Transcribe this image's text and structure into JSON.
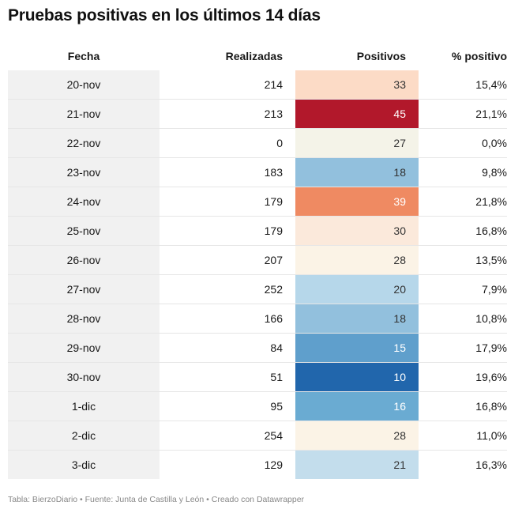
{
  "title": "Pruebas positivas en los últimos 14 días",
  "footer": "Tabla: BierzoDiario • Fuente: Junta de Castilla y León • Creado con Datawrapper",
  "chart_data": {
    "type": "table",
    "columns": [
      "Fecha",
      "Realizadas",
      "Positivos",
      "% positivo"
    ],
    "rows": [
      {
        "fecha": "20-nov",
        "realizadas": "214",
        "positivos": "33",
        "pct": "15,4%",
        "color": "#fcdbc6",
        "text": "#333333"
      },
      {
        "fecha": "21-nov",
        "realizadas": "213",
        "positivos": "45",
        "pct": "21,1%",
        "color": "#b2182b",
        "text": "#ffffff"
      },
      {
        "fecha": "22-nov",
        "realizadas": "0",
        "positivos": "27",
        "pct": "0,0%",
        "color": "#f4f3e8",
        "text": "#333333"
      },
      {
        "fecha": "23-nov",
        "realizadas": "183",
        "positivos": "18",
        "pct": "9,8%",
        "color": "#92c0dd",
        "text": "#333333"
      },
      {
        "fecha": "24-nov",
        "realizadas": "179",
        "positivos": "39",
        "pct": "21,8%",
        "color": "#ef8a62",
        "text": "#ffffff"
      },
      {
        "fecha": "25-nov",
        "realizadas": "179",
        "positivos": "30",
        "pct": "16,8%",
        "color": "#fbe9db",
        "text": "#333333"
      },
      {
        "fecha": "26-nov",
        "realizadas": "207",
        "positivos": "28",
        "pct": "13,5%",
        "color": "#fbf3e6",
        "text": "#333333"
      },
      {
        "fecha": "27-nov",
        "realizadas": "252",
        "positivos": "20",
        "pct": "7,9%",
        "color": "#b6d7ea",
        "text": "#333333"
      },
      {
        "fecha": "28-nov",
        "realizadas": "166",
        "positivos": "18",
        "pct": "10,8%",
        "color": "#92c0dd",
        "text": "#333333"
      },
      {
        "fecha": "29-nov",
        "realizadas": "84",
        "positivos": "15",
        "pct": "17,9%",
        "color": "#5f9fcc",
        "text": "#ffffff"
      },
      {
        "fecha": "30-nov",
        "realizadas": "51",
        "positivos": "10",
        "pct": "19,6%",
        "color": "#2166ac",
        "text": "#ffffff"
      },
      {
        "fecha": "1-dic",
        "realizadas": "95",
        "positivos": "16",
        "pct": "16,8%",
        "color": "#6aabd2",
        "text": "#ffffff"
      },
      {
        "fecha": "2-dic",
        "realizadas": "254",
        "positivos": "28",
        "pct": "11,0%",
        "color": "#fbf3e6",
        "text": "#333333"
      },
      {
        "fecha": "3-dic",
        "realizadas": "129",
        "positivos": "21",
        "pct": "16,3%",
        "color": "#c3ddec",
        "text": "#333333"
      }
    ]
  }
}
